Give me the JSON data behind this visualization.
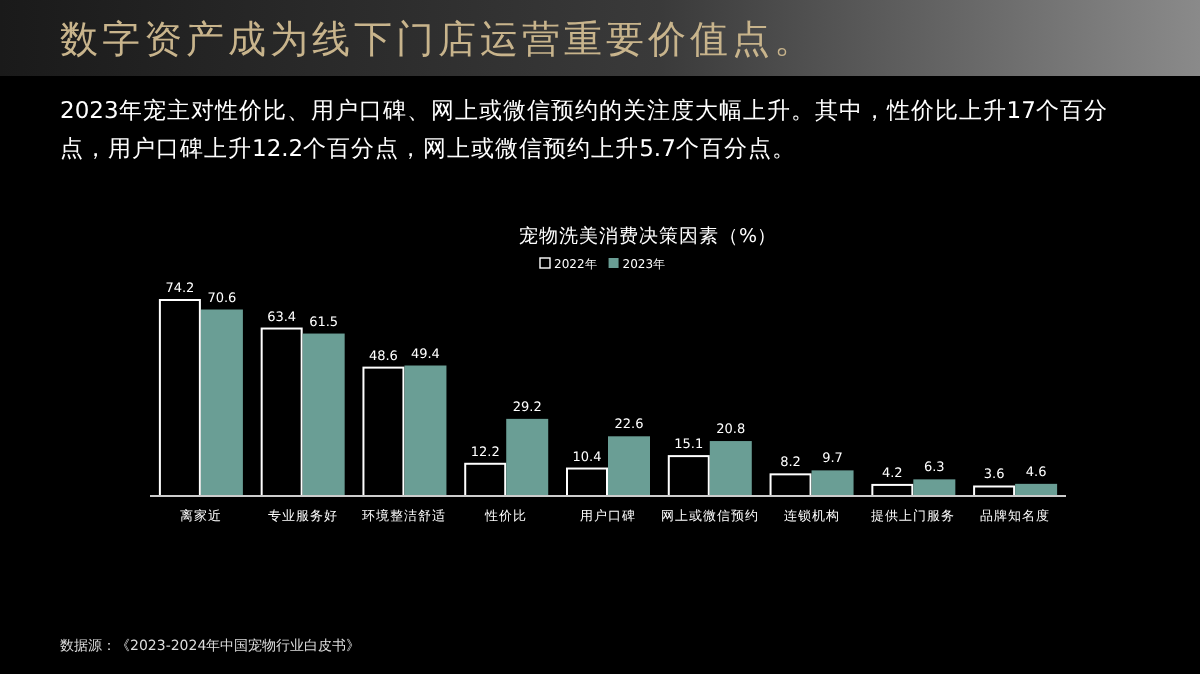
{
  "chart_data": {
    "type": "bar",
    "title": "宠物洗美消费决策因素（%）",
    "categories": [
      "离家近",
      "专业服务好",
      "环境整洁舒适",
      "性价比",
      "用户口碑",
      "网上或微信预约",
      "连锁机构",
      "提供上门服务",
      "品牌知名度"
    ],
    "series": [
      {
        "name": "2022年",
        "color": "#000000",
        "values": [
          74.2,
          63.4,
          48.6,
          12.2,
          10.4,
          15.1,
          8.2,
          4.2,
          3.6
        ]
      },
      {
        "name": "2023年",
        "color": "#6a9e95",
        "values": [
          70.6,
          61.5,
          49.4,
          29.2,
          22.6,
          20.8,
          9.7,
          6.3,
          4.6
        ]
      }
    ],
    "data_labels": true,
    "legend": "top",
    "annotations": [
      "数字资产成为线下门店运营重要价值点。",
      "2023年宠主对性价比、用户口碑、网上或微信预约的关注度大幅上升。其中，性价比上升17个百分点，用户口碑上升12.2个百分点，网上或微信预约上升5.7个百分点。",
      "数据源：《2023-2024年中国宠物行业白皮书》"
    ]
  }
}
